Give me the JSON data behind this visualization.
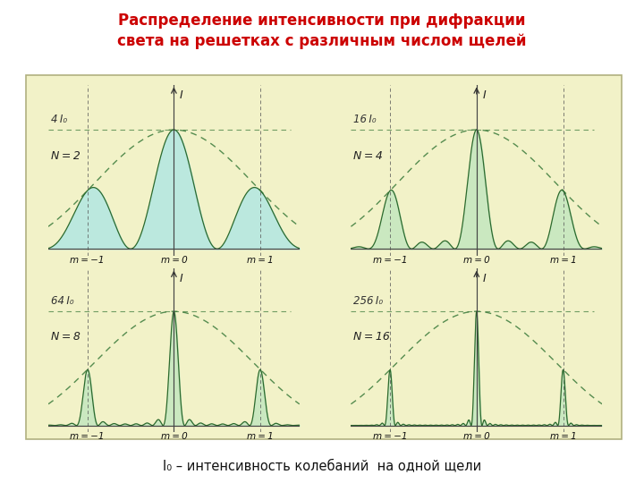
{
  "title_line1": "Распределение интенсивности при дифракции",
  "title_line2": "света на решетках с различным числом щелей",
  "title_color": "#cc0000",
  "subtitle": "I₀ – интенсивность колебаний  на одной щели",
  "bg_outer": "#ffffff",
  "bg_panel": "#f2f2c8",
  "line_color": "#2d6a2d",
  "envelope_color": "#3a7a3a",
  "fill_color_N2": "#b8e8e0",
  "fill_color_rest": "#c8e8c0",
  "N_values": [
    2,
    4,
    8,
    16
  ],
  "peak_labels": [
    "4 I₀",
    "16 I₀",
    "64 I₀",
    "256 I₀"
  ],
  "N_labels": [
    "N = 2",
    "N = 4",
    "N = 8",
    "N = 16"
  ],
  "m_tick_labels": [
    "m = −1",
    "m = 0",
    "m = 1"
  ]
}
